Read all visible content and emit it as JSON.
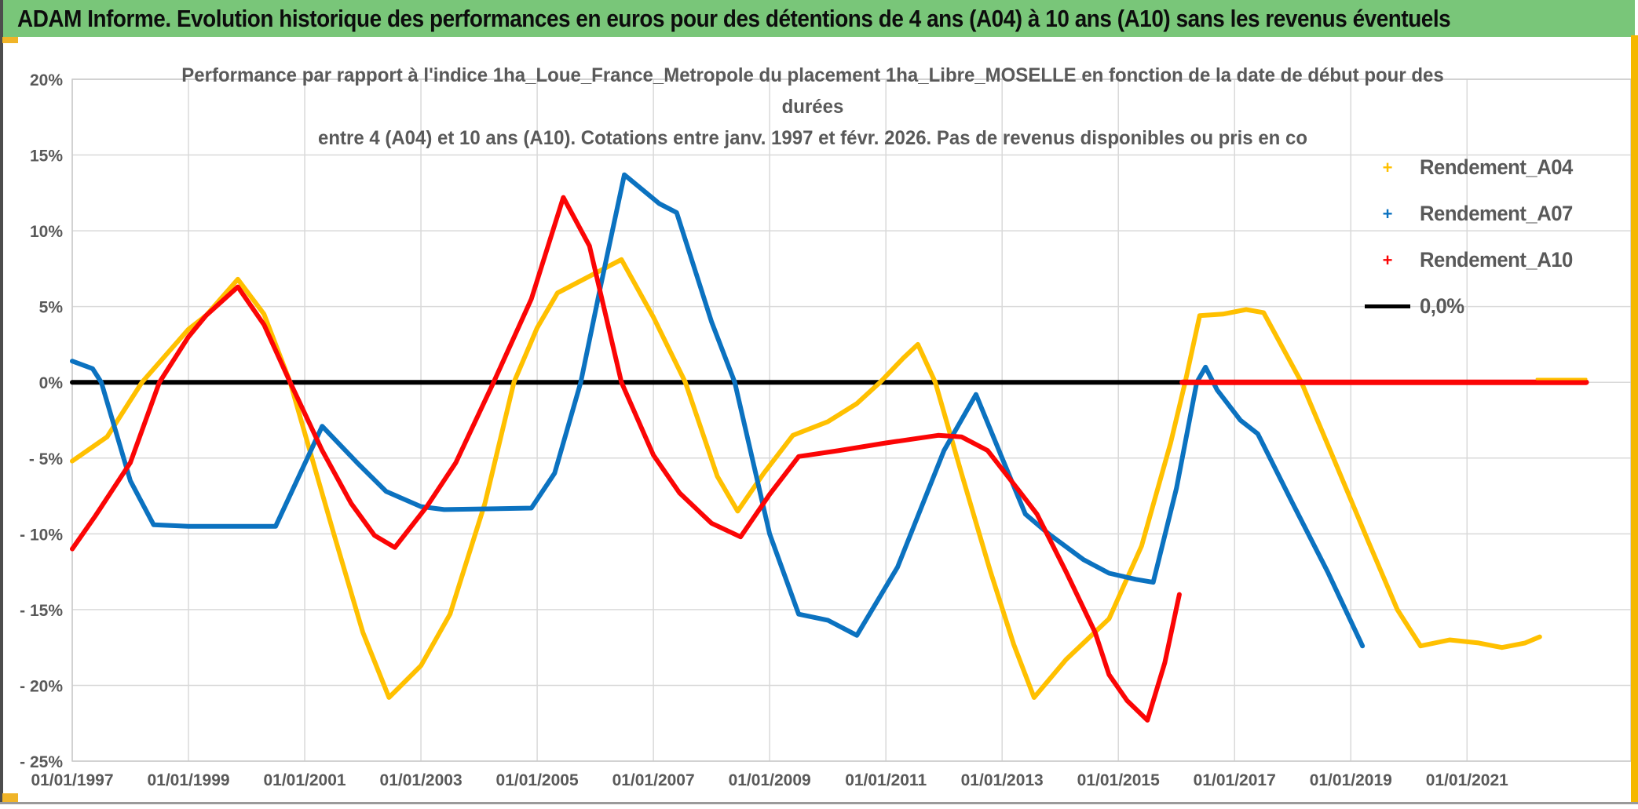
{
  "title_bar": {
    "text": "ADAM Informe. Evolution historique des performances en euros pour des détentions de 4 ans (A04) à 10 ans (A10) sans les revenus éventuels",
    "bg_color": "#79C679"
  },
  "chart_data": {
    "type": "line",
    "title_lines": [
      "Performance par rapport à l'indice 1ha_Loue_France_Metropole  du placement 1ha_Libre_MOSELLE en fonction de la date de début pour des",
      "durées",
      "entre 4 (A04) et 10 ans (A10). Cotations entre janv. 1997 et févr. 2026. Pas de revenus disponibles ou pris en co"
    ],
    "axes": {
      "x_min": 1997.0,
      "x_max": 2023.82,
      "y_min": -25,
      "y_max": 20,
      "grid": true,
      "x_ticks": [
        {
          "year": 1997,
          "label": "01/01/1997"
        },
        {
          "year": 1999,
          "label": "01/01/1999"
        },
        {
          "year": 2001,
          "label": "01/01/2001"
        },
        {
          "year": 2003,
          "label": "01/01/2003"
        },
        {
          "year": 2005,
          "label": "01/01/2005"
        },
        {
          "year": 2007,
          "label": "01/01/2007"
        },
        {
          "year": 2009,
          "label": "01/01/2009"
        },
        {
          "year": 2011,
          "label": "01/01/2011"
        },
        {
          "year": 2013,
          "label": "01/01/2013"
        },
        {
          "year": 2015,
          "label": "01/01/2015"
        },
        {
          "year": 2017,
          "label": "01/01/2017"
        },
        {
          "year": 2019,
          "label": "01/01/2019"
        },
        {
          "year": 2021,
          "label": "01/01/2021"
        }
      ],
      "y_ticks": [
        {
          "value": 20,
          "label": "20%"
        },
        {
          "value": 15,
          "label": "15%"
        },
        {
          "value": 10,
          "label": "10%"
        },
        {
          "value": 5,
          "label": "5%"
        },
        {
          "value": 0,
          "label": "0%"
        },
        {
          "value": -5,
          "label": "- 5%"
        },
        {
          "value": -10,
          "label": "- 10%"
        },
        {
          "value": -15,
          "label": "- 15%"
        },
        {
          "value": -20,
          "label": "- 20%"
        },
        {
          "value": -25,
          "label": "- 25%"
        }
      ]
    },
    "legend": [
      {
        "label": "Rendement_A04",
        "color": "#FFC000",
        "marker": "plus"
      },
      {
        "label": "Rendement_A07",
        "color": "#0B72C0",
        "marker": "plus"
      },
      {
        "label": "Rendement_A10",
        "color": "#FB0505",
        "marker": "plus"
      },
      {
        "label": "0,0%",
        "color": "#000000",
        "marker": "line"
      }
    ],
    "series": [
      {
        "name": "Rendement_A04",
        "color": "#FFC000",
        "width": 6,
        "points": [
          [
            1997.0,
            -5.2
          ],
          [
            1997.6,
            -3.6
          ],
          [
            1998.2,
            0
          ],
          [
            1999.0,
            3.5
          ],
          [
            1999.3,
            4.4
          ],
          [
            1999.85,
            6.8
          ],
          [
            2000.3,
            4.5
          ],
          [
            2000.75,
            0
          ],
          [
            2001.5,
            -10
          ],
          [
            2002.0,
            -16.5
          ],
          [
            2002.45,
            -20.8
          ],
          [
            2003.0,
            -18.7
          ],
          [
            2003.5,
            -15.3
          ],
          [
            2004.1,
            -8
          ],
          [
            2004.6,
            0
          ],
          [
            2005.0,
            3.6
          ],
          [
            2005.35,
            5.9
          ],
          [
            2006.0,
            7.2
          ],
          [
            2006.45,
            8.1
          ],
          [
            2007.0,
            4.3
          ],
          [
            2007.55,
            0
          ],
          [
            2008.1,
            -6.2
          ],
          [
            2008.45,
            -8.5
          ],
          [
            2008.9,
            -6
          ],
          [
            2009.4,
            -3.5
          ],
          [
            2010.0,
            -2.6
          ],
          [
            2010.5,
            -1.4
          ],
          [
            2010.9,
            0
          ],
          [
            2011.3,
            1.6
          ],
          [
            2011.55,
            2.5
          ],
          [
            2011.85,
            0
          ],
          [
            2012.3,
            -6
          ],
          [
            2012.8,
            -12.5
          ],
          [
            2013.2,
            -17.3
          ],
          [
            2013.55,
            -20.8
          ],
          [
            2014.1,
            -18.3
          ],
          [
            2014.84,
            -15.6
          ],
          [
            2015.4,
            -10.8
          ],
          [
            2015.9,
            -4
          ],
          [
            2016.15,
            0
          ],
          [
            2016.4,
            4.4
          ],
          [
            2016.8,
            4.5
          ],
          [
            2017.2,
            4.8
          ],
          [
            2017.5,
            4.6
          ],
          [
            2018.15,
            0
          ],
          [
            2018.7,
            -5
          ],
          [
            2019.3,
            -10.5
          ],
          [
            2019.8,
            -15
          ],
          [
            2020.2,
            -17.4
          ],
          [
            2020.7,
            -17
          ],
          [
            2021.2,
            -17.2
          ],
          [
            2021.6,
            -17.5
          ],
          [
            2022.0,
            -17.2
          ],
          [
            2022.25,
            -16.8
          ]
        ]
      },
      {
        "name": "Rendement_A07",
        "color": "#0B72C0",
        "width": 6,
        "points": [
          [
            1997.0,
            1.4
          ],
          [
            1997.35,
            0.9
          ],
          [
            1997.5,
            0
          ],
          [
            1998.0,
            -6.5
          ],
          [
            1998.4,
            -9.4
          ],
          [
            1999.0,
            -9.5
          ],
          [
            2000.5,
            -9.5
          ],
          [
            2001.3,
            -2.9
          ],
          [
            2001.9,
            -5.3
          ],
          [
            2002.4,
            -7.2
          ],
          [
            2003.0,
            -8.2
          ],
          [
            2003.4,
            -8.4
          ],
          [
            2004.9,
            -8.3
          ],
          [
            2005.3,
            -6
          ],
          [
            2005.75,
            0
          ],
          [
            2006.1,
            6.5
          ],
          [
            2006.5,
            13.7
          ],
          [
            2007.1,
            11.8
          ],
          [
            2007.4,
            11.2
          ],
          [
            2008.0,
            4
          ],
          [
            2008.4,
            0
          ],
          [
            2009.0,
            -10
          ],
          [
            2009.5,
            -15.3
          ],
          [
            2010.0,
            -15.7
          ],
          [
            2010.5,
            -16.7
          ],
          [
            2011.2,
            -12.2
          ],
          [
            2012.0,
            -4.5
          ],
          [
            2012.55,
            -0.8
          ],
          [
            2013.0,
            -5
          ],
          [
            2013.4,
            -8.7
          ],
          [
            2013.8,
            -10
          ],
          [
            2014.4,
            -11.7
          ],
          [
            2014.84,
            -12.6
          ],
          [
            2015.3,
            -13
          ],
          [
            2015.6,
            -13.2
          ],
          [
            2016.0,
            -7
          ],
          [
            2016.35,
            0
          ],
          [
            2016.5,
            1
          ],
          [
            2016.7,
            -0.5
          ],
          [
            2017.1,
            -2.5
          ],
          [
            2017.4,
            -3.4
          ],
          [
            2018.0,
            -8
          ],
          [
            2018.6,
            -12.5
          ],
          [
            2019.2,
            -17.4
          ]
        ]
      },
      {
        "name": "Rendement_A10",
        "color": "#FB0505",
        "width": 6,
        "points": [
          [
            1997.0,
            -11
          ],
          [
            1997.4,
            -8.8
          ],
          [
            1998.0,
            -5.3
          ],
          [
            1998.5,
            0
          ],
          [
            1999.0,
            3
          ],
          [
            1999.3,
            4.4
          ],
          [
            1999.85,
            6.3
          ],
          [
            2000.3,
            3.8
          ],
          [
            2000.75,
            0
          ],
          [
            2001.3,
            -4.5
          ],
          [
            2001.8,
            -8
          ],
          [
            2002.2,
            -10.1
          ],
          [
            2002.55,
            -10.9
          ],
          [
            2003.1,
            -8.2
          ],
          [
            2003.6,
            -5.3
          ],
          [
            2004.25,
            0
          ],
          [
            2004.9,
            5.5
          ],
          [
            2005.45,
            12.2
          ],
          [
            2005.9,
            9
          ],
          [
            2006.45,
            0
          ],
          [
            2007.0,
            -4.8
          ],
          [
            2007.45,
            -7.3
          ],
          [
            2008.0,
            -9.3
          ],
          [
            2008.5,
            -10.2
          ],
          [
            2009.0,
            -7.4
          ],
          [
            2009.5,
            -4.9
          ],
          [
            2010.2,
            -4.5
          ],
          [
            2011.0,
            -4.0
          ],
          [
            2011.9,
            -3.5
          ],
          [
            2012.3,
            -3.6
          ],
          [
            2012.75,
            -4.5
          ],
          [
            2013.3,
            -7.2
          ],
          [
            2013.6,
            -8.7
          ],
          [
            2014.1,
            -12.5
          ],
          [
            2014.6,
            -16.5
          ],
          [
            2014.84,
            -19.3
          ],
          [
            2015.15,
            -21
          ],
          [
            2015.5,
            -22.3
          ],
          [
            2015.8,
            -18.5
          ],
          [
            2016.05,
            -14
          ]
        ]
      }
    ],
    "overlays": [
      {
        "name": "zero-line",
        "color": "#000000",
        "width": 6,
        "points": [
          [
            1997.0,
            0
          ],
          [
            2023.05,
            0
          ]
        ]
      },
      {
        "name": "a10-zero-tail",
        "color": "#FB0505",
        "width": 7,
        "points": [
          [
            2016.1,
            0
          ],
          [
            2023.05,
            0
          ]
        ]
      },
      {
        "name": "a04-zero-tail",
        "color": "#FFC000",
        "width": 3,
        "points": [
          [
            2022.2,
            0.22
          ],
          [
            2023.05,
            0.22
          ]
        ]
      }
    ],
    "grid_color": "#D9D9D9",
    "border_color": "#C9C9C9",
    "tick_label_color": "#595959"
  }
}
